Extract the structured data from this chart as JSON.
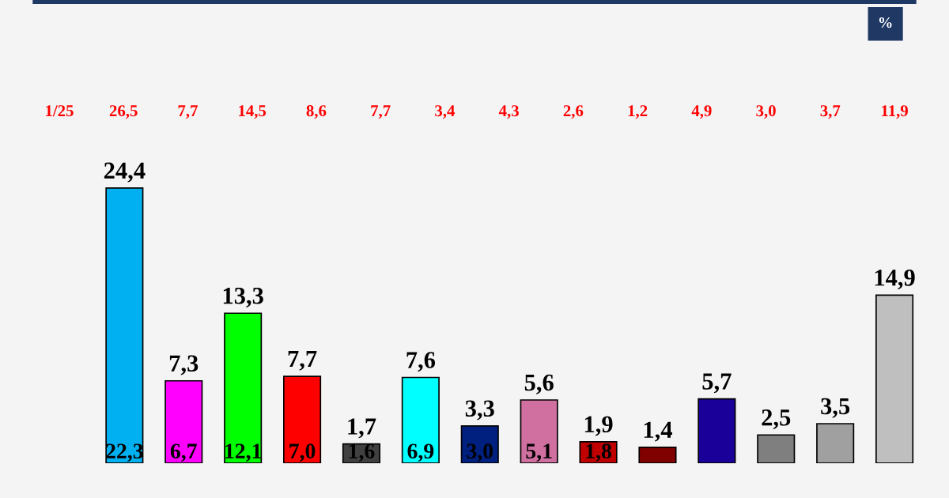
{
  "chart_data": {
    "type": "bar",
    "categories": [
      null,
      null,
      null,
      null,
      null,
      null,
      null,
      null,
      null,
      null,
      null,
      null,
      null,
      null
    ],
    "series": [
      {
        "values": [
          24.4,
          7.3,
          13.3,
          7.7,
          1.7,
          7.6,
          3.3,
          5.6,
          1.9,
          1.4,
          5.7,
          2.5,
          3.5,
          14.9
        ],
        "value_labels": [
          "24,4",
          "7,3",
          "13,3",
          "7,7",
          "1,7",
          "7,6",
          "3,3",
          "5,6",
          "1,9",
          "1,4",
          "5,7",
          "2,5",
          "3,5",
          "14,9"
        ],
        "colors": [
          "#00b0f0",
          "#ff00ff",
          "#00ff00",
          "#ff0000",
          "#404040",
          "#00ffff",
          "#002080",
          "#d070a0",
          "#c00000",
          "#800000",
          "#1a0099",
          "#7f7f7f",
          "#a0a0a0",
          "#bfbfbf"
        ]
      }
    ],
    "annotations": [
      "%",
      "1/25",
      "26,5",
      "7,7",
      "14,5",
      "8,6",
      "7,7",
      "3,4",
      "4,3",
      "2,6",
      "1,2",
      "4,9",
      "3,0",
      "3,7",
      "11,9",
      "22,3",
      "6,7",
      "12,1",
      "7,0",
      "1,6",
      "6,9",
      "3,0",
      "5,1",
      "1,8"
    ],
    "grid": false,
    "legend": false
  }
}
